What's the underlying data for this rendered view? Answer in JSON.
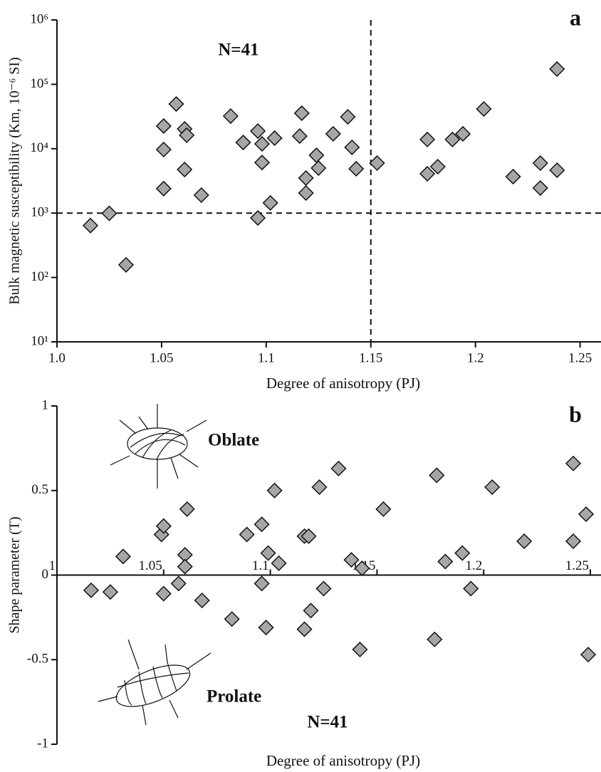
{
  "chart_data": [
    {
      "type": "scatter",
      "panel_label": "a",
      "annotations": [
        "N=41"
      ],
      "x_label": "Degree of anisotropy (PJ)",
      "y_label": "Bulk magnetic susceptibility (Km, 10⁻⁶ SI)",
      "x": [
        1.016,
        1.025,
        1.033,
        1.051,
        1.051,
        1.051,
        1.057,
        1.061,
        1.062,
        1.061,
        1.069,
        1.083,
        1.089,
        1.096,
        1.098,
        1.098,
        1.104,
        1.096,
        1.102,
        1.117,
        1.116,
        1.124,
        1.125,
        1.119,
        1.119,
        1.132,
        1.139,
        1.141,
        1.143,
        1.153,
        1.177,
        1.177,
        1.182,
        1.189,
        1.194,
        1.204,
        1.218,
        1.231,
        1.231,
        1.239,
        1.239
      ],
      "values": [
        640,
        990,
        157,
        22500,
        9700,
        2400,
        49500,
        20300,
        16200,
        4750,
        1900,
        32100,
        12500,
        18800,
        11900,
        6100,
        14600,
        840,
        1440,
        35600,
        15700,
        7900,
        5000,
        3500,
        2050,
        17000,
        31300,
        10500,
        4880,
        5980,
        13900,
        4080,
        5260,
        13900,
        17000,
        41400,
        3680,
        5980,
        2450,
        172600,
        4630
      ],
      "color": "#a6a6a6",
      "log_y": true,
      "xlim": [
        1.0,
        1.26
      ],
      "ylim": [
        10,
        1000000
      ],
      "xticks": [
        {
          "value": 1,
          "label": "1.0"
        },
        1.05,
        1.1,
        1.15,
        1.2,
        1.25
      ],
      "yticks": [
        {
          "value": 10,
          "label": "10¹"
        },
        {
          "value": 100,
          "label": "10²"
        },
        {
          "value": 1000,
          "label": "10³"
        },
        {
          "value": 10000,
          "label": "10⁴"
        },
        {
          "value": 100000,
          "label": "10⁵"
        },
        {
          "value": 1000000,
          "label": "10⁶"
        }
      ],
      "reference_lines": {
        "x": 1.15,
        "y": 1000
      }
    },
    {
      "type": "scatter",
      "panel_label": "b",
      "annotations": [
        "Oblate",
        "Prolate",
        "N=41"
      ],
      "x_label": "Degree of anisotropy (PJ)",
      "y_label": "Shape parameter (T)",
      "x": [
        1.016,
        1.025,
        1.031,
        1.049,
        1.05,
        1.05,
        1.057,
        1.06,
        1.06,
        1.061,
        1.068,
        1.082,
        1.089,
        1.096,
        1.096,
        1.099,
        1.102,
        1.104,
        1.098,
        1.116,
        1.118,
        1.119,
        1.116,
        1.123,
        1.125,
        1.132,
        1.138,
        1.142,
        1.143,
        1.153,
        1.178,
        1.177,
        1.182,
        1.19,
        1.194,
        1.204,
        1.219,
        1.242,
        1.242,
        1.248,
        1.249
      ],
      "values": [
        -0.09,
        -0.1,
        0.11,
        0.24,
        0.29,
        -0.11,
        -0.05,
        0.12,
        0.05,
        0.39,
        -0.15,
        -0.26,
        0.24,
        0.3,
        -0.05,
        0.13,
        0.5,
        0.07,
        -0.31,
        0.23,
        0.23,
        -0.21,
        -0.32,
        0.52,
        -0.08,
        0.63,
        0.09,
        -0.44,
        0.04,
        0.39,
        0.59,
        -0.38,
        0.08,
        0.13,
        -0.08,
        0.52,
        0.2,
        0.66,
        0.2,
        0.36,
        -0.47
      ],
      "color": "#a6a6a6",
      "log_y": false,
      "xlim": [
        1.0,
        1.255
      ],
      "ylim": [
        -1,
        1
      ],
      "xticks": [
        1,
        1.05,
        1.1,
        1.15,
        1.2,
        1.25
      ],
      "yticks": [
        -1,
        -0.5,
        0,
        0.5,
        1
      ]
    }
  ]
}
